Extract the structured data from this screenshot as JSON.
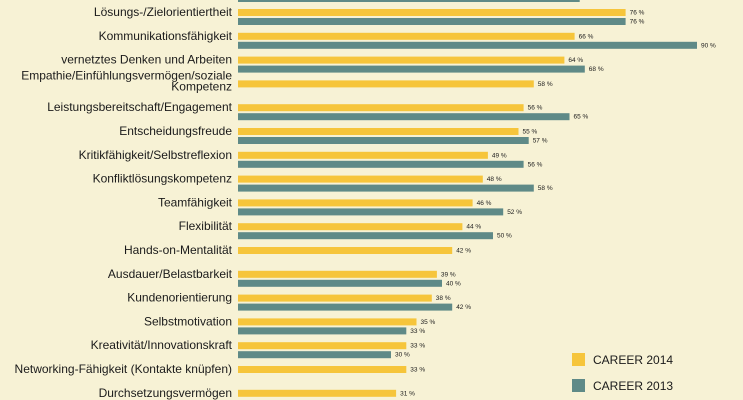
{
  "chart_data": {
    "type": "bar",
    "orientation": "horizontal",
    "xlim": [
      0,
      100
    ],
    "value_suffix": " %",
    "categories": [
      "Lösungs-/Zielorientiertheit",
      "Kommunikationsfähigkeit",
      "vernetztes Denken und Arbeiten",
      "Empathie/Einfühlungsvermögen/soziale Kompetenz",
      "Leistungsbereitschaft/Engagement",
      "Entscheidungsfreude",
      "Kritikfähigkeit/Selbstreflexion",
      "Konfliktlösungskompetenz",
      "Teamfähigkeit",
      "Flexibilität",
      "Hands-on-Mentalität",
      "Ausdauer/Belastbarkeit",
      "Kundenorientierung",
      "Selbstmotivation",
      "Kreativität/Innovationskraft",
      "Networking-Fähigkeit (Kontakte knüpfen)",
      "Durchsetzungsvermögen"
    ],
    "label_lines": [
      [
        "Lösungs-/Zielorientiertheit"
      ],
      [
        "Kommunikationsfähigkeit"
      ],
      [
        "vernetztes Denken und Arbeiten"
      ],
      [
        "Empathie/Einfühlungsvermögen/soziale",
        "Kompetenz"
      ],
      [
        "Leistungsbereitschaft/Engagement"
      ],
      [
        "Entscheidungsfreude"
      ],
      [
        "Kritikfähigkeit/Selbstreflexion"
      ],
      [
        "Konfliktlösungskompetenz"
      ],
      [
        "Teamfähigkeit"
      ],
      [
        "Flexibilität"
      ],
      [
        "Hands-on-Mentalität"
      ],
      [
        "Ausdauer/Belastbarkeit"
      ],
      [
        "Kundenorientierung"
      ],
      [
        "Selbstmotivation"
      ],
      [
        "Kreativität/Innovationskraft"
      ],
      [
        "Networking-Fähigkeit (Kontakte knüpfen)"
      ],
      [
        "Durchsetzungsvermögen"
      ]
    ],
    "series": [
      {
        "name": "CAREER 2014",
        "color": "#f6c53b",
        "values": [
          76,
          66,
          64,
          58,
          56,
          55,
          49,
          48,
          46,
          44,
          42,
          39,
          38,
          35,
          33,
          33,
          31
        ]
      },
      {
        "name": "CAREER 2013",
        "color": "#5f8a87",
        "values": [
          76,
          90,
          68,
          null,
          65,
          57,
          56,
          58,
          52,
          50,
          null,
          40,
          42,
          33,
          30,
          null,
          null
        ]
      }
    ],
    "legend": {
      "position": "bottom-right"
    }
  }
}
